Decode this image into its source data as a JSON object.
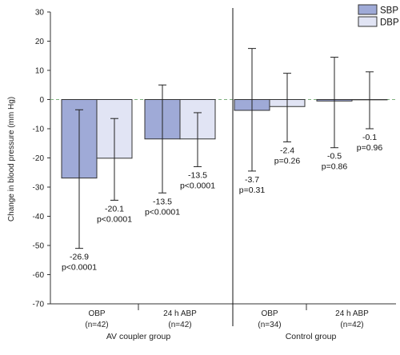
{
  "chart_data": {
    "type": "bar",
    "ylabel": "Change in blood pressure (mm Hg)",
    "ylim": [
      -70,
      30
    ],
    "yticks": [
      30,
      20,
      10,
      0,
      -10,
      -20,
      -30,
      -40,
      -50,
      -60,
      -70
    ],
    "legend_position": "top-right",
    "groups": [
      {
        "label": "AV coupler group",
        "categories": [
          {
            "label": "OBP",
            "n": "(n=42)"
          },
          {
            "label": "24 h ABP",
            "n": "(n=42)"
          }
        ]
      },
      {
        "label": "Control group",
        "categories": [
          {
            "label": "OBP",
            "n": "(n=34)"
          },
          {
            "label": "24 h ABP",
            "n": "(n=42)"
          }
        ]
      }
    ],
    "series": [
      {
        "name": "SBP",
        "color": "#9faad7",
        "values": [
          -26.9,
          -13.5,
          -3.7,
          -0.5
        ],
        "err_low": [
          -51,
          -32,
          -24.5,
          -16.5
        ],
        "err_high": [
          -3.5,
          5,
          17.5,
          14.5
        ],
        "labels": [
          "-26.9",
          "-13.5",
          "-3.7",
          "-0.5"
        ],
        "pvalues": [
          "p<0.0001",
          "p<0.0001",
          "p=0.31",
          "p=0.86"
        ]
      },
      {
        "name": "DBP",
        "color": "#e1e4f4",
        "values": [
          -20.1,
          -13.5,
          -2.4,
          -0.1
        ],
        "err_low": [
          -34.5,
          -23,
          -14.5,
          -10
        ],
        "err_high": [
          -6.5,
          -4.5,
          9,
          9.5
        ],
        "labels": [
          "-20.1",
          "-13.5",
          "-2.4",
          "-0.1"
        ],
        "pvalues": [
          "p<0.0001",
          "p<0.0001",
          "p=0.26",
          "p=0.96"
        ]
      }
    ]
  }
}
